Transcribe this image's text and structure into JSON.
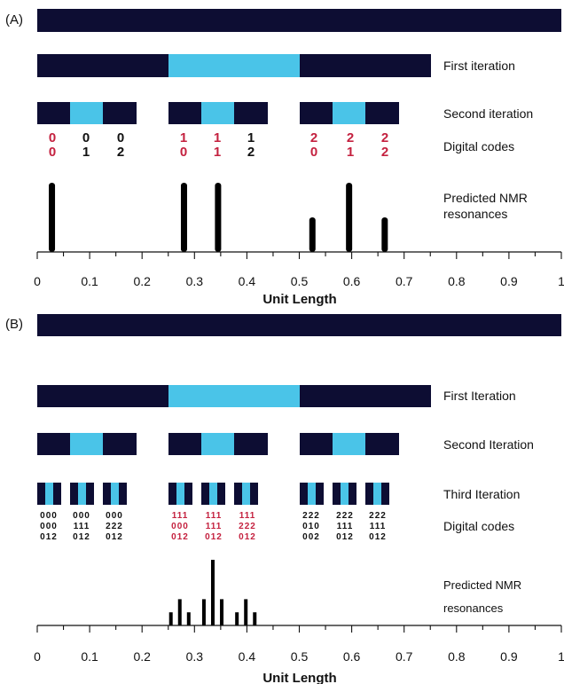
{
  "colors": {
    "dark": "#0d0d33",
    "light": "#4ac4e8",
    "code_red": "#c4213f",
    "code_black": "#111111"
  },
  "panel_a": {
    "label": "(A)",
    "row_labels": [
      "First iteration",
      "Second iteration",
      "Digital codes"
    ],
    "nmr_label_lines": [
      "Predicted NMR",
      "resonances"
    ],
    "xlabel": "Unit Length",
    "ticks": [
      "0",
      "0.1",
      "0.2",
      "0.3",
      "0.4",
      "0.5",
      "0.6",
      "0.7",
      "0.8",
      "0.9",
      "1"
    ],
    "codes": [
      {
        "top": "0",
        "bottom": "0",
        "red": true
      },
      {
        "top": "0",
        "bottom": "1",
        "red": false
      },
      {
        "top": "0",
        "bottom": "2",
        "red": false
      },
      {
        "top": "1",
        "bottom": "0",
        "red": true
      },
      {
        "top": "1",
        "bottom": "1",
        "red": true
      },
      {
        "top": "1",
        "bottom": "2",
        "red": false
      },
      {
        "top": "2",
        "bottom": "0",
        "red": true
      },
      {
        "top": "2",
        "bottom": "1",
        "red": true
      },
      {
        "top": "2",
        "bottom": "2",
        "red": true
      }
    ],
    "resonances": [
      {
        "x": 0.028,
        "h": 1.0
      },
      {
        "x": 0.28,
        "h": 1.0
      },
      {
        "x": 0.345,
        "h": 1.0
      },
      {
        "x": 0.525,
        "h": 0.5
      },
      {
        "x": 0.595,
        "h": 1.0
      },
      {
        "x": 0.663,
        "h": 0.5
      }
    ]
  },
  "panel_b": {
    "label": "(B)",
    "row_labels": [
      "First Iteration",
      "Second Iteration",
      "Third Iteration",
      "Digital codes"
    ],
    "nmr_label_lines": [
      "Predicted NMR",
      "resonances"
    ],
    "xlabel": "Unit Length",
    "ticks": [
      "0",
      "0.1",
      "0.2",
      "0.3",
      "0.4",
      "0.5",
      "0.6",
      "0.7",
      "0.8",
      "0.9",
      "1"
    ],
    "codes": [
      {
        "lines": [
          "000",
          "000",
          "012"
        ],
        "red": false
      },
      {
        "lines": [
          "000",
          "111",
          "012"
        ],
        "red": false
      },
      {
        "lines": [
          "000",
          "222",
          "012"
        ],
        "red": false
      },
      {
        "lines": [
          "111",
          "000",
          "012"
        ],
        "red": true
      },
      {
        "lines": [
          "111",
          "111",
          "012"
        ],
        "red": true
      },
      {
        "lines": [
          "111",
          "222",
          "012"
        ],
        "red": true
      },
      {
        "lines": [
          "222",
          "010",
          "002"
        ],
        "red": false
      },
      {
        "lines": [
          "222",
          "111",
          "012"
        ],
        "red": false
      },
      {
        "lines": [
          "222",
          "111",
          "012"
        ],
        "red": false
      }
    ],
    "resonances": [
      {
        "x": 0.255,
        "h": 0.2
      },
      {
        "x": 0.272,
        "h": 0.4
      },
      {
        "x": 0.289,
        "h": 0.2
      },
      {
        "x": 0.318,
        "h": 0.4
      },
      {
        "x": 0.335,
        "h": 1.0
      },
      {
        "x": 0.352,
        "h": 0.4
      },
      {
        "x": 0.381,
        "h": 0.2
      },
      {
        "x": 0.398,
        "h": 0.4
      },
      {
        "x": 0.415,
        "h": 0.2
      }
    ]
  }
}
